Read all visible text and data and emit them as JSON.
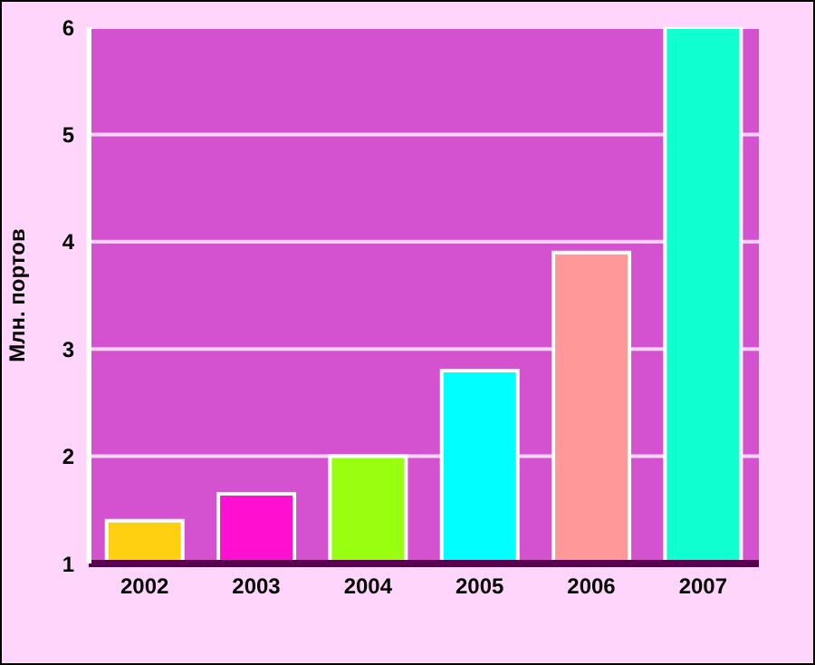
{
  "chart_data": {
    "type": "bar",
    "ylabel": "Млн. портов",
    "categories": [
      "2002",
      "2003",
      "2004",
      "2005",
      "2006",
      "2007"
    ],
    "values": [
      1.4,
      1.65,
      2.0,
      2.8,
      3.9,
      6.0
    ],
    "colors": [
      "#ffd010",
      "#ff10d0",
      "#99ff10",
      "#00ffff",
      "#ff9999",
      "#10ffd0"
    ],
    "ylim": [
      1,
      6
    ],
    "yticks": [
      1,
      2,
      3,
      4,
      5,
      6
    ],
    "grid": "y"
  }
}
